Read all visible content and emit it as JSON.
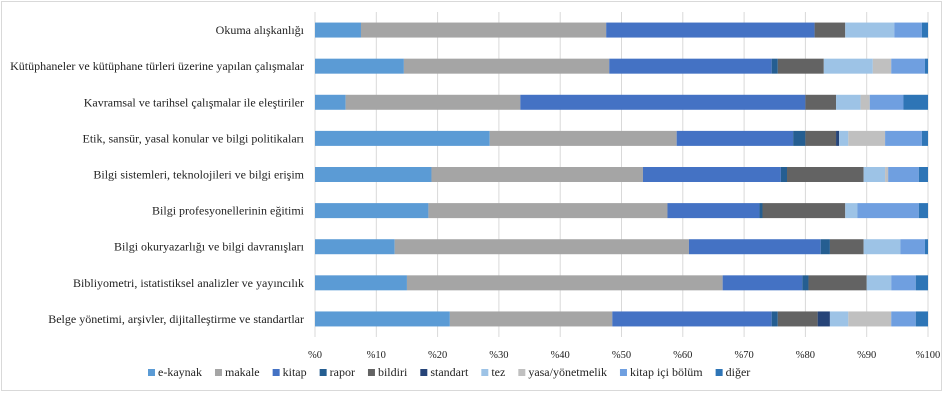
{
  "chart_data": {
    "type": "bar",
    "orientation": "horizontal",
    "stacked": "percent",
    "categories": [
      "Okuma alışkanlığı",
      "Kütüphaneler ve kütüphane türleri üzerine yapılan çalışmalar",
      "Kavramsal ve tarihsel çalışmalar ile eleştiriler",
      "Etik, sansür, yasal konular ve bilgi politikaları",
      "Bilgi sistemleri, teknolojileri ve bilgi erişim",
      "Bilgi profesyonellerinin eğitimi",
      "Bilgi okuryazarlığı ve bilgi davranışları",
      "Bibliyometri, istatistiksel analizler ve yayıncılık",
      "Belge yönetimi, arşivler, dijitalleştirme ve standartlar"
    ],
    "series": [
      {
        "name": "e-kaynak",
        "color": "#5b9bd5",
        "values": [
          7.5,
          14.5,
          5,
          28.5,
          19,
          18.5,
          13,
          15,
          22
        ]
      },
      {
        "name": "makale",
        "color": "#a5a5a5",
        "values": [
          40,
          33.5,
          28.5,
          30.5,
          34.5,
          39,
          48,
          51.5,
          26.5
        ]
      },
      {
        "name": "kitap",
        "color": "#4472c4",
        "values": [
          34,
          26.5,
          46.5,
          19,
          22.5,
          15,
          21.5,
          13,
          26
        ]
      },
      {
        "name": "rapor",
        "color": "#255e91",
        "values": [
          0,
          1,
          0,
          2,
          1,
          0.5,
          1.5,
          1,
          1
        ]
      },
      {
        "name": "bildiri",
        "color": "#636363",
        "values": [
          5,
          7.5,
          5,
          5,
          12.5,
          13.5,
          5.5,
          9.5,
          6.5
        ]
      },
      {
        "name": "standart",
        "color": "#264478",
        "values": [
          0,
          0,
          0,
          0.5,
          0,
          0,
          0,
          0,
          2
        ]
      },
      {
        "name": "tez",
        "color": "#9dc3e6",
        "values": [
          8,
          8,
          4,
          1.5,
          3.5,
          2,
          6,
          4,
          3
        ]
      },
      {
        "name": "yasa/yönetmelik",
        "color": "#c0c0c0",
        "values": [
          0,
          3,
          1.5,
          6,
          0.5,
          0,
          0,
          0,
          7
        ]
      },
      {
        "name": "kitap içi bölüm",
        "color": "#6f9fe0",
        "values": [
          4.5,
          5.5,
          5.5,
          6,
          5,
          10,
          4,
          4,
          4
        ]
      },
      {
        "name": "diğer",
        "color": "#2e75b6",
        "values": [
          1,
          0.5,
          4,
          1,
          1.5,
          1.5,
          0.5,
          2,
          2
        ]
      }
    ],
    "x_ticks": [
      "%0",
      "%10",
      "%20",
      "%30",
      "%40",
      "%50",
      "%60",
      "%70",
      "%80",
      "%90",
      "%100"
    ],
    "xlim": [
      0,
      100
    ],
    "grid": "vertical",
    "legend_position": "bottom"
  }
}
